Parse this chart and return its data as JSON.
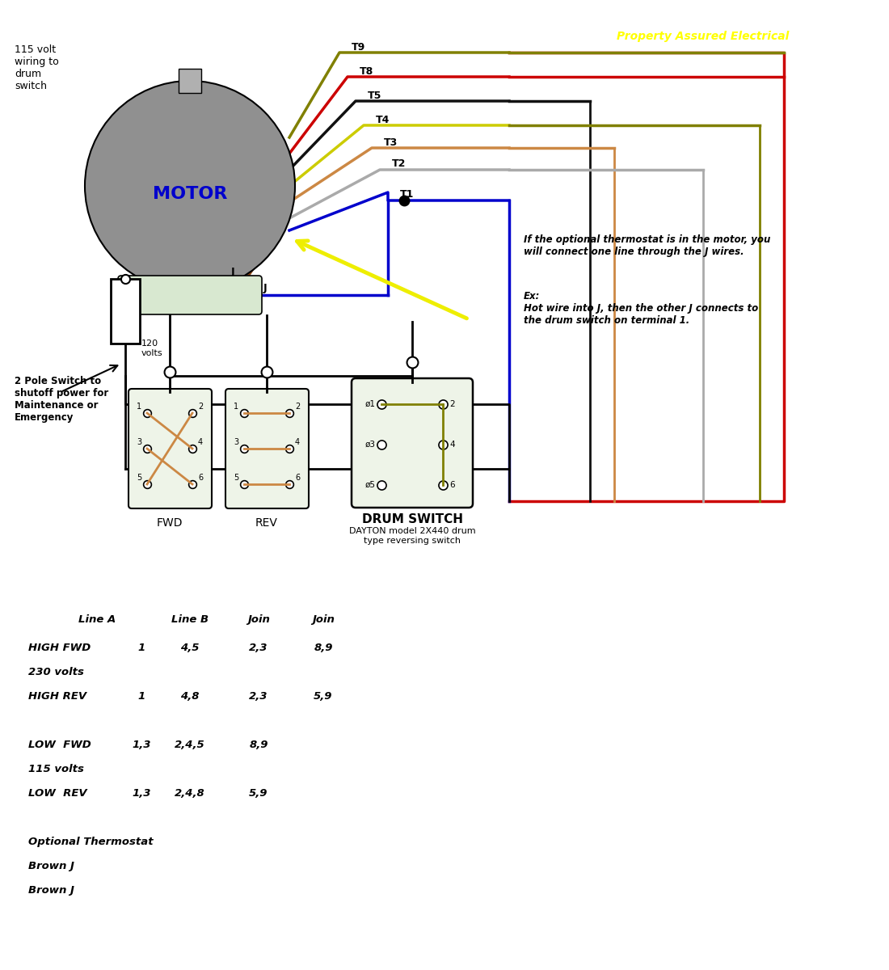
{
  "bg_color": "#ffffff",
  "watermark": "Property Assured Electrical",
  "watermark_color": "#ffff00",
  "top_left_text": "115 volt\nwiring to\ndrum\nswitch",
  "right_note1": "If the optional thermostat is in the motor, you\nwill connect one line through the J wires.",
  "right_note2": "Ex:\nHot wire into J, then the other J connects to\nthe drum switch on terminal 1.",
  "switch_label": "2 Pole Switch to\nshutoff power for\nMaintenance or\nEmergency",
  "fwd_label": "FWD",
  "rev_label": "REV",
  "drum_label": "DRUM SWITCH",
  "drum_sublabel": "DAYTON model 2X440 drum\ntype reversing switch"
}
